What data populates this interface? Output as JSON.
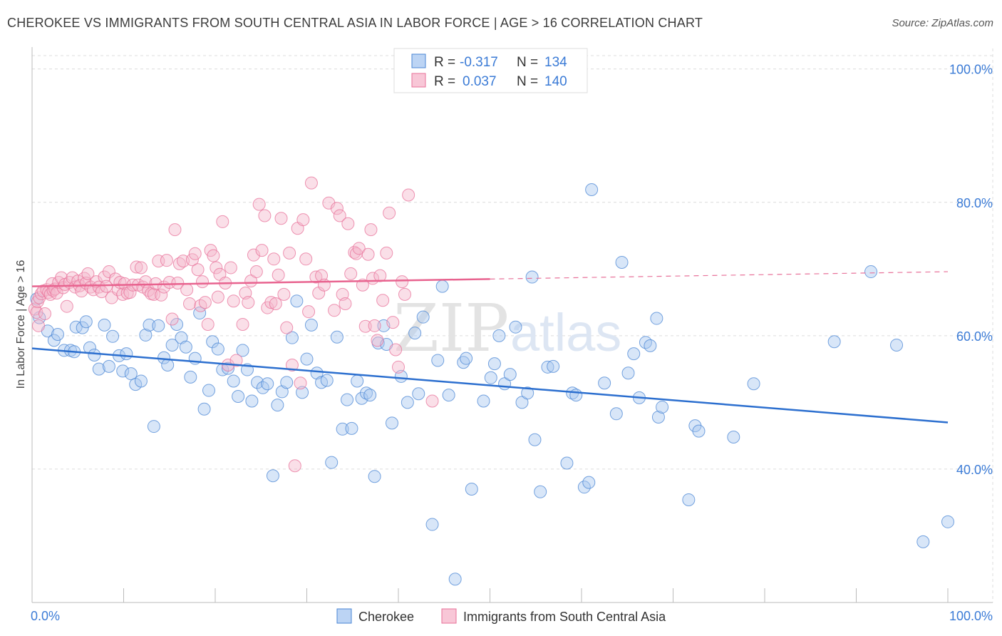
{
  "header": {
    "title": "CHEROKEE VS IMMIGRANTS FROM SOUTH CENTRAL ASIA IN LABOR FORCE | AGE > 16 CORRELATION CHART",
    "source": "Source: ZipAtlas.com"
  },
  "watermark": {
    "zip": "ZIP",
    "atlas": "atlas"
  },
  "legend_box": {
    "rows": [
      {
        "r_label": "R =",
        "r_value": "-0.317",
        "n_label": "N =",
        "n_value": "134"
      },
      {
        "r_label": "R =",
        "r_value": "0.037",
        "n_label": "N =",
        "n_value": "140"
      }
    ]
  },
  "colors": {
    "cherokee": "#4a86d4",
    "cherokee_fill": "#a9c8f0",
    "immigrants": "#e8729a",
    "immigrants_fill": "#f5b8cc",
    "value_text": "#3b7bd6",
    "grid": "#dcdcdc"
  },
  "chart_data": {
    "type": "scatter",
    "title": "CHEROKEE VS IMMIGRANTS FROM SOUTH CENTRAL ASIA IN LABOR FORCE | AGE > 16 CORRELATION CHART",
    "xlabel": "",
    "ylabel": "In Labor Force | Age > 16",
    "xlim": [
      0,
      100
    ],
    "ylim": [
      20,
      102
    ],
    "x_tick_labels": [
      "0.0%",
      "100.0%"
    ],
    "y_tick_labels": [
      "40.0%",
      "60.0%",
      "80.0%",
      "100.0%"
    ],
    "y_ticks": [
      40,
      60,
      80,
      100
    ],
    "grid": true,
    "legend_position": "bottom",
    "series": [
      {
        "name": "Cherokee",
        "r": -0.317,
        "n": 134,
        "trend": {
          "x": [
            0,
            100
          ],
          "y": [
            58.1,
            47.0
          ]
        },
        "points": [
          [
            0.5,
            65.5
          ],
          [
            0.8,
            62.7
          ],
          [
            1.7,
            60.7
          ],
          [
            2.4,
            59.3
          ],
          [
            2.8,
            60.2
          ],
          [
            3.5,
            57.8
          ],
          [
            4.2,
            57.8
          ],
          [
            4.6,
            57.6
          ],
          [
            4.8,
            61.3
          ],
          [
            5.5,
            61.2
          ],
          [
            5.9,
            62.1
          ],
          [
            6.3,
            58.2
          ],
          [
            6.8,
            57.1
          ],
          [
            7.3,
            55.0
          ],
          [
            7.9,
            61.6
          ],
          [
            8.4,
            55.4
          ],
          [
            8.8,
            59.9
          ],
          [
            9.5,
            57.0
          ],
          [
            9.9,
            54.7
          ],
          [
            10.3,
            57.3
          ],
          [
            10.8,
            54.3
          ],
          [
            11.3,
            52.7
          ],
          [
            11.9,
            53.2
          ],
          [
            12.4,
            60.1
          ],
          [
            12.8,
            61.6
          ],
          [
            13.3,
            46.4
          ],
          [
            13.8,
            61.5
          ],
          [
            14.4,
            56.7
          ],
          [
            14.8,
            55.6
          ],
          [
            15.3,
            58.6
          ],
          [
            15.8,
            61.7
          ],
          [
            16.3,
            59.7
          ],
          [
            16.8,
            58.3
          ],
          [
            17.3,
            53.8
          ],
          [
            17.8,
            56.6
          ],
          [
            18.3,
            63.4
          ],
          [
            18.8,
            49.0
          ],
          [
            19.3,
            51.8
          ],
          [
            19.7,
            59.1
          ],
          [
            20.3,
            58.0
          ],
          [
            20.8,
            54.9
          ],
          [
            21.4,
            55.1
          ],
          [
            22.0,
            53.2
          ],
          [
            22.5,
            50.9
          ],
          [
            23.0,
            57.8
          ],
          [
            23.5,
            54.9
          ],
          [
            24.0,
            50.2
          ],
          [
            24.6,
            53.0
          ],
          [
            25.2,
            52.2
          ],
          [
            25.7,
            52.8
          ],
          [
            26.3,
            39.0
          ],
          [
            26.8,
            49.6
          ],
          [
            27.3,
            51.6
          ],
          [
            27.8,
            53.0
          ],
          [
            28.4,
            59.7
          ],
          [
            28.9,
            65.2
          ],
          [
            29.5,
            51.5
          ],
          [
            30.0,
            56.5
          ],
          [
            30.5,
            61.6
          ],
          [
            31.1,
            54.4
          ],
          [
            31.6,
            53.0
          ],
          [
            32.2,
            53.3
          ],
          [
            32.7,
            41.0
          ],
          [
            33.3,
            59.8
          ],
          [
            33.9,
            46.0
          ],
          [
            34.4,
            50.4
          ],
          [
            34.9,
            46.1
          ],
          [
            35.5,
            53.2
          ],
          [
            36.0,
            50.6
          ],
          [
            36.5,
            51.4
          ],
          [
            36.9,
            51.1
          ],
          [
            37.4,
            38.9
          ],
          [
            37.8,
            58.9
          ],
          [
            38.4,
            61.5
          ],
          [
            38.7,
            58.7
          ],
          [
            39.3,
            46.9
          ],
          [
            40.3,
            53.9
          ],
          [
            41.0,
            50.0
          ],
          [
            41.8,
            60.4
          ],
          [
            42.2,
            51.3
          ],
          [
            42.7,
            62.8
          ],
          [
            43.7,
            31.7
          ],
          [
            44.3,
            56.3
          ],
          [
            44.8,
            67.4
          ],
          [
            45.5,
            51.1
          ],
          [
            46.2,
            23.5
          ],
          [
            47.1,
            56.0
          ],
          [
            47.4,
            56.6
          ],
          [
            48.0,
            37.0
          ],
          [
            49.3,
            50.2
          ],
          [
            50.1,
            53.7
          ],
          [
            50.5,
            55.8
          ],
          [
            51.0,
            60.0
          ],
          [
            51.6,
            52.8
          ],
          [
            52.2,
            54.2
          ],
          [
            52.8,
            61.3
          ],
          [
            53.5,
            50.0
          ],
          [
            54.1,
            51.4
          ],
          [
            54.6,
            68.8
          ],
          [
            54.9,
            44.4
          ],
          [
            55.5,
            36.6
          ],
          [
            56.3,
            55.3
          ],
          [
            56.9,
            55.4
          ],
          [
            58.4,
            40.9
          ],
          [
            59.0,
            51.4
          ],
          [
            59.4,
            51.1
          ],
          [
            60.3,
            37.3
          ],
          [
            60.8,
            38.0
          ],
          [
            61.1,
            81.9
          ],
          [
            62.5,
            52.9
          ],
          [
            63.8,
            48.3
          ],
          [
            64.4,
            71.0
          ],
          [
            65.1,
            54.4
          ],
          [
            65.7,
            57.3
          ],
          [
            66.3,
            50.7
          ],
          [
            67.0,
            59.0
          ],
          [
            67.5,
            58.5
          ],
          [
            68.2,
            62.6
          ],
          [
            68.4,
            47.8
          ],
          [
            68.8,
            49.3
          ],
          [
            71.7,
            35.4
          ],
          [
            72.4,
            46.5
          ],
          [
            72.8,
            45.7
          ],
          [
            76.6,
            44.8
          ],
          [
            78.8,
            52.8
          ],
          [
            87.6,
            59.1
          ],
          [
            91.6,
            69.6
          ],
          [
            94.4,
            58.6
          ],
          [
            97.3,
            29.1
          ],
          [
            100.0,
            32.1
          ]
        ]
      },
      {
        "name": "Immigrants from South Central Asia",
        "r": 0.037,
        "n": 140,
        "trend": {
          "x": [
            0,
            50
          ],
          "y": [
            67.4,
            68.5
          ]
        },
        "trend_dashed": {
          "x": [
            50,
            100
          ],
          "y": [
            68.5,
            69.6
          ]
        },
        "points": [
          [
            0.3,
            64.0
          ],
          [
            0.5,
            63.5
          ],
          [
            0.6,
            65.1
          ],
          [
            0.7,
            61.5
          ],
          [
            0.8,
            65.7
          ],
          [
            1.0,
            66.3
          ],
          [
            1.2,
            66.7
          ],
          [
            1.4,
            63.3
          ],
          [
            1.6,
            66.9
          ],
          [
            1.8,
            66.5
          ],
          [
            2.0,
            66.2
          ],
          [
            2.2,
            67.8
          ],
          [
            2.3,
            66.8
          ],
          [
            2.5,
            67.0
          ],
          [
            2.7,
            66.4
          ],
          [
            2.9,
            68.0
          ],
          [
            3.2,
            68.7
          ],
          [
            3.4,
            67.2
          ],
          [
            3.6,
            67.7
          ],
          [
            3.8,
            64.4
          ],
          [
            4.1,
            68.0
          ],
          [
            4.4,
            68.7
          ],
          [
            4.7,
            67.3
          ],
          [
            5.0,
            68.2
          ],
          [
            5.2,
            67.5
          ],
          [
            5.4,
            66.7
          ],
          [
            5.7,
            68.6
          ],
          [
            5.9,
            67.9
          ],
          [
            6.1,
            69.3
          ],
          [
            6.4,
            67.3
          ],
          [
            6.7,
            66.9
          ],
          [
            7.0,
            68.1
          ],
          [
            7.3,
            67.3
          ],
          [
            7.6,
            66.6
          ],
          [
            7.9,
            68.8
          ],
          [
            8.1,
            67.4
          ],
          [
            8.4,
            69.6
          ],
          [
            8.7,
            65.7
          ],
          [
            9.1,
            68.5
          ],
          [
            9.4,
            66.9
          ],
          [
            9.6,
            68.0
          ],
          [
            9.9,
            66.2
          ],
          [
            10.1,
            67.8
          ],
          [
            10.4,
            66.4
          ],
          [
            10.7,
            66.5
          ],
          [
            11.0,
            67.6
          ],
          [
            11.4,
            70.3
          ],
          [
            11.6,
            67.6
          ],
          [
            11.9,
            70.2
          ],
          [
            12.1,
            67.3
          ],
          [
            12.4,
            68.1
          ],
          [
            12.7,
            66.8
          ],
          [
            13.0,
            66.3
          ],
          [
            13.3,
            66.2
          ],
          [
            13.5,
            67.8
          ],
          [
            13.8,
            71.2
          ],
          [
            14.1,
            66.1
          ],
          [
            14.4,
            67.3
          ],
          [
            14.7,
            71.3
          ],
          [
            15.0,
            68.0
          ],
          [
            15.3,
            62.5
          ],
          [
            15.6,
            75.9
          ],
          [
            15.9,
            67.9
          ],
          [
            16.1,
            70.8
          ],
          [
            16.5,
            71.2
          ],
          [
            16.9,
            66.9
          ],
          [
            17.2,
            64.8
          ],
          [
            17.5,
            71.4
          ],
          [
            17.8,
            72.3
          ],
          [
            18.1,
            69.9
          ],
          [
            18.4,
            64.5
          ],
          [
            18.6,
            68.1
          ],
          [
            18.9,
            65.0
          ],
          [
            19.2,
            61.7
          ],
          [
            19.5,
            72.8
          ],
          [
            19.8,
            72.0
          ],
          [
            20.1,
            70.2
          ],
          [
            20.3,
            65.8
          ],
          [
            20.5,
            69.2
          ],
          [
            20.8,
            77.1
          ],
          [
            21.1,
            67.9
          ],
          [
            21.4,
            55.6
          ],
          [
            21.7,
            70.2
          ],
          [
            22.0,
            65.2
          ],
          [
            22.3,
            56.3
          ],
          [
            23.0,
            61.7
          ],
          [
            23.3,
            66.4
          ],
          [
            23.6,
            65.0
          ],
          [
            23.9,
            68.2
          ],
          [
            24.2,
            72.1
          ],
          [
            24.5,
            69.6
          ],
          [
            24.8,
            79.7
          ],
          [
            25.1,
            72.8
          ],
          [
            25.4,
            78.0
          ],
          [
            25.7,
            64.2
          ],
          [
            26.1,
            65.0
          ],
          [
            26.4,
            71.5
          ],
          [
            26.6,
            64.8
          ],
          [
            26.9,
            69.1
          ],
          [
            27.2,
            77.6
          ],
          [
            27.5,
            66.2
          ],
          [
            27.8,
            61.2
          ],
          [
            28.1,
            72.4
          ],
          [
            28.4,
            55.6
          ],
          [
            28.7,
            40.5
          ],
          [
            29.0,
            76.1
          ],
          [
            29.3,
            52.9
          ],
          [
            29.6,
            77.4
          ],
          [
            29.9,
            71.5
          ],
          [
            30.2,
            63.6
          ],
          [
            30.5,
            82.9
          ],
          [
            31.0,
            68.8
          ],
          [
            31.3,
            66.4
          ],
          [
            31.6,
            69.0
          ],
          [
            31.9,
            67.6
          ],
          [
            32.4,
            79.9
          ],
          [
            33.0,
            63.8
          ],
          [
            33.3,
            79.1
          ],
          [
            33.6,
            78.0
          ],
          [
            33.9,
            66.2
          ],
          [
            34.2,
            64.8
          ],
          [
            34.5,
            76.8
          ],
          [
            34.8,
            69.3
          ],
          [
            35.2,
            72.5
          ],
          [
            35.4,
            72.3
          ],
          [
            35.7,
            73.1
          ],
          [
            36.1,
            67.6
          ],
          [
            36.4,
            61.4
          ],
          [
            36.7,
            72.2
          ],
          [
            37.0,
            75.9
          ],
          [
            37.2,
            68.6
          ],
          [
            37.4,
            61.5
          ],
          [
            37.7,
            59.3
          ],
          [
            38.0,
            69.0
          ],
          [
            38.3,
            65.3
          ],
          [
            38.7,
            72.4
          ],
          [
            39.0,
            78.4
          ],
          [
            39.4,
            62.0
          ],
          [
            39.7,
            57.9
          ],
          [
            40.0,
            55.3
          ],
          [
            40.4,
            68.1
          ],
          [
            40.7,
            66.2
          ],
          [
            41.1,
            81.1
          ],
          [
            43.7,
            50.2
          ]
        ]
      }
    ]
  }
}
